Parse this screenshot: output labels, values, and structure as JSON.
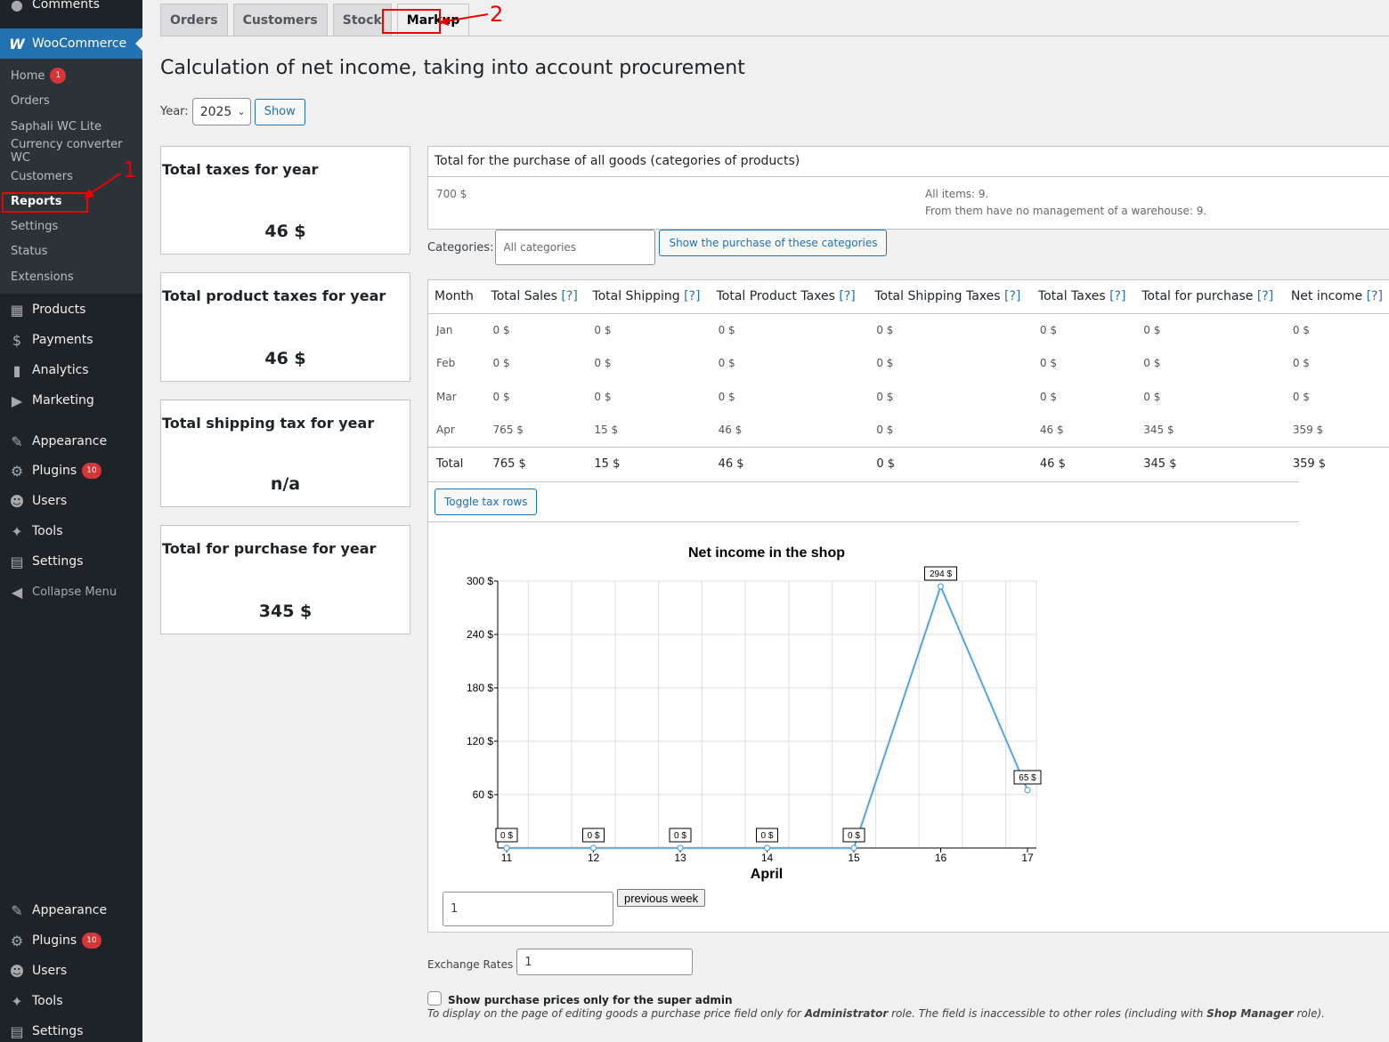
{
  "sidebar": {
    "top_partial_item": "Comments",
    "woo_label": "WooCommerce",
    "woo_sub": [
      {
        "label": "Home",
        "badge": "1"
      },
      {
        "label": "Orders"
      },
      {
        "label": "Saphali WC Lite"
      },
      {
        "label": "Currency converter WC"
      },
      {
        "label": "Customers"
      },
      {
        "label": "Reports",
        "current": true
      },
      {
        "label": "Settings"
      },
      {
        "label": "Status"
      },
      {
        "label": "Extensions"
      }
    ],
    "menu": [
      {
        "label": "Products",
        "icon": "archive-icon"
      },
      {
        "label": "Payments",
        "icon": "payments-icon"
      },
      {
        "label": "Analytics",
        "icon": "bar-chart-icon"
      },
      {
        "label": "Marketing",
        "icon": "megaphone-icon"
      },
      {
        "label": "Appearance",
        "icon": "paintbrush-icon"
      },
      {
        "label": "Plugins",
        "icon": "plug-icon",
        "badge": "10"
      },
      {
        "label": "Users",
        "icon": "user-icon"
      },
      {
        "label": "Tools",
        "icon": "wrench-icon"
      },
      {
        "label": "Settings",
        "icon": "settings-icon"
      },
      {
        "label": "Collapse Menu",
        "icon": "collapse-icon"
      }
    ],
    "menu_repeat": [
      {
        "label": "Appearance",
        "icon": "paintbrush-icon"
      },
      {
        "label": "Plugins",
        "icon": "plug-icon",
        "badge": "10"
      },
      {
        "label": "Users",
        "icon": "user-icon"
      },
      {
        "label": "Tools",
        "icon": "wrench-icon"
      },
      {
        "label": "Settings",
        "icon": "settings-icon"
      }
    ]
  },
  "annotations": {
    "one": "1",
    "two": "2"
  },
  "tabs": [
    "Orders",
    "Customers",
    "Stock",
    "Markup"
  ],
  "page_title": "Calculation of net income, taking into account procurement",
  "year_filter": {
    "label": "Year:",
    "value": "2025",
    "button": "Show"
  },
  "stat_boxes": [
    {
      "title": "Total taxes for year",
      "value": "46 $"
    },
    {
      "title": "Total product taxes for year",
      "value": "46 $"
    },
    {
      "title": "Total shipping tax for year",
      "value": "n/a"
    },
    {
      "title": "Total for purchase for year",
      "value": "345 $"
    }
  ],
  "purchase_panel": {
    "header": "Total for the purchase of all goods (categories of products)",
    "amount": "700 $",
    "items": "All items: 9.",
    "no_warehouse": "From them have no management of a warehouse: 9."
  },
  "categories": {
    "label": "Categories:",
    "placeholder": "All categories",
    "button": "Show the purchase of these categories"
  },
  "table": {
    "headers": [
      "Month",
      "Total Sales",
      "Total Shipping",
      "Total Product Taxes",
      "Total Shipping Taxes",
      "Total Taxes",
      "Total for purchase",
      "Net income"
    ],
    "help": "[?]",
    "rows": [
      [
        "Jan",
        "0 $",
        "0 $",
        "0 $",
        "0 $",
        "0 $",
        "0 $",
        "0 $"
      ],
      [
        "Feb",
        "0 $",
        "0 $",
        "0 $",
        "0 $",
        "0 $",
        "0 $",
        "0 $"
      ],
      [
        "Mar",
        "0 $",
        "0 $",
        "0 $",
        "0 $",
        "0 $",
        "0 $",
        "0 $"
      ],
      [
        "Apr",
        "765 $",
        "15 $",
        "46 $",
        "0 $",
        "46 $",
        "345 $",
        "359 $"
      ]
    ],
    "total": [
      "Total",
      "765 $",
      "15 $",
      "46 $",
      "0 $",
      "46 $",
      "345 $",
      "359 $"
    ],
    "toggle_button": "Toggle tax rows"
  },
  "chart_data": {
    "type": "line",
    "title": "Net income in the shop",
    "xlabel": "April",
    "ylabel": "",
    "x": [
      11,
      12,
      13,
      14,
      15,
      16,
      17
    ],
    "values": [
      0,
      0,
      0,
      0,
      0,
      294,
      65
    ],
    "data_labels": [
      "0 $",
      "0 $",
      "0 $",
      "0 $",
      "0 $",
      "294 $",
      "65 $"
    ],
    "y_ticks": [
      "300 $",
      "240 $",
      "180 $",
      "120 $",
      "60 $"
    ],
    "y_tick_values": [
      300,
      240,
      180,
      120,
      60
    ],
    "ylim": [
      0,
      300
    ],
    "grid": true,
    "color": "#3a9bd5"
  },
  "chart_nav": {
    "week_value": "1",
    "prev_button": "previous week"
  },
  "exchange": {
    "label": "Exchange Rates",
    "value": "1"
  },
  "superadmin": {
    "label": "Show purchase prices only for the super admin",
    "desc_1": "To display on the page of editing goods a purchase price field only for ",
    "desc_role": "Administrator",
    "desc_2": " role. The field is inaccessible to other roles (including with ",
    "desc_role2": "Shop Manager",
    "desc_3": " role)."
  }
}
